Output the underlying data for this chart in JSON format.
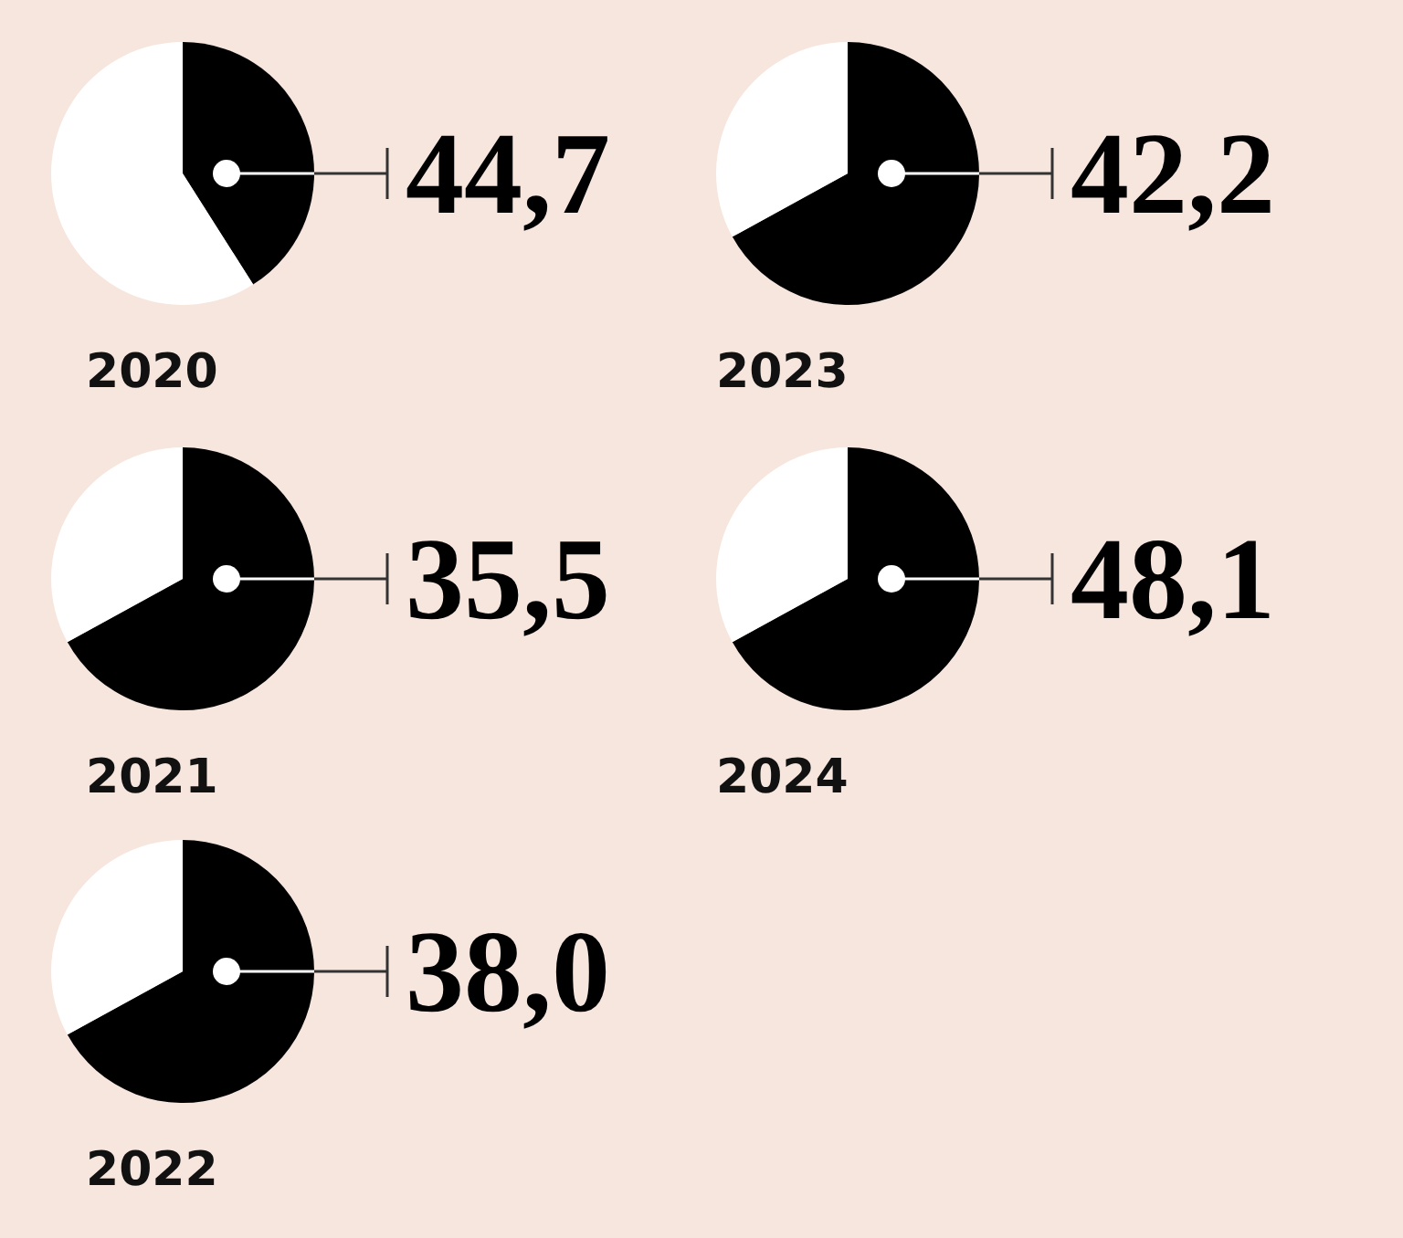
{
  "chart_data": [
    {
      "type": "pie",
      "title": "2020",
      "categories": [
        null,
        null
      ],
      "values": [
        41,
        59
      ],
      "colors": [
        "#000000",
        "#ffffff"
      ],
      "annotations": [
        "44,7"
      ]
    },
    {
      "type": "pie",
      "title": "2023",
      "categories": [
        null,
        null
      ],
      "values": [
        67,
        33
      ],
      "colors": [
        "#000000",
        "#ffffff"
      ],
      "annotations": [
        "42,2"
      ]
    },
    {
      "type": "pie",
      "title": "2021",
      "categories": [
        null,
        null
      ],
      "values": [
        67,
        33
      ],
      "colors": [
        "#000000",
        "#ffffff"
      ],
      "annotations": [
        "35,5"
      ]
    },
    {
      "type": "pie",
      "title": "2024",
      "categories": [
        null,
        null
      ],
      "values": [
        67,
        33
      ],
      "colors": [
        "#000000",
        "#ffffff"
      ],
      "annotations": [
        "48,1"
      ]
    },
    {
      "type": "pie",
      "title": "2022",
      "categories": [
        null,
        null
      ],
      "values": [
        67,
        33
      ],
      "colors": [
        "#000000",
        "#ffffff"
      ],
      "annotations": [
        "38,0"
      ]
    }
  ]
}
